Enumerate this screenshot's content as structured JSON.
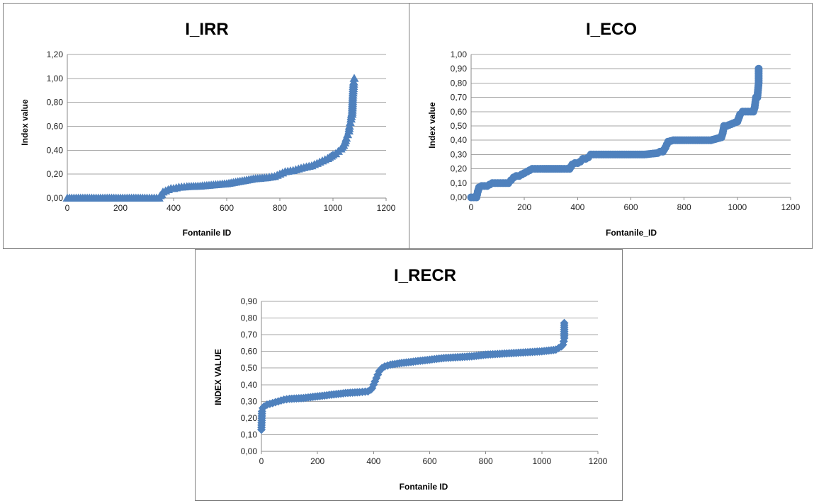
{
  "chart_data": [
    {
      "id": "irr",
      "type": "scatter",
      "title": "I_IRR",
      "xlabel": "Fontanile ID",
      "ylabel": "Index value",
      "xlim": [
        0,
        1200
      ],
      "ylim": [
        0,
        1.2
      ],
      "xticks": [
        "0",
        "200",
        "400",
        "600",
        "800",
        "1000",
        "1200"
      ],
      "yticks": [
        "0,00",
        "0,20",
        "0,40",
        "0,60",
        "0,80",
        "1,00",
        "1,20"
      ],
      "marker": "triangle",
      "color": "#4f81bd",
      "grid": true,
      "legend": "none",
      "series": [
        {
          "x": [
            0,
            50,
            100,
            150,
            200,
            250,
            300,
            345,
            350,
            355,
            360,
            370,
            380,
            390,
            400,
            420,
            450,
            500,
            550,
            600,
            650,
            700,
            750,
            780,
            800,
            820,
            850,
            880,
            900,
            920,
            940,
            960,
            980,
            1000,
            1010,
            1020,
            1030,
            1040,
            1045,
            1050,
            1055,
            1060,
            1062,
            1065,
            1068,
            1070,
            1072,
            1075,
            1078,
            1080
          ],
          "y": [
            0,
            0,
            0,
            0,
            0,
            0,
            0,
            0,
            0.02,
            0.03,
            0.05,
            0.06,
            0.07,
            0.08,
            0.08,
            0.09,
            0.095,
            0.1,
            0.11,
            0.12,
            0.14,
            0.16,
            0.17,
            0.18,
            0.2,
            0.22,
            0.23,
            0.25,
            0.26,
            0.27,
            0.29,
            0.31,
            0.33,
            0.36,
            0.37,
            0.39,
            0.41,
            0.44,
            0.46,
            0.5,
            0.53,
            0.56,
            0.6,
            0.63,
            0.66,
            0.7,
            0.7,
            0.86,
            0.97,
            1.0
          ]
        }
      ]
    },
    {
      "id": "eco",
      "type": "scatter",
      "title": "I_ECO",
      "xlabel": "Fontanile_ID",
      "ylabel": "Index value",
      "xlim": [
        0,
        1200
      ],
      "ylim": [
        0,
        1.0
      ],
      "xticks": [
        "0",
        "200",
        "400",
        "600",
        "800",
        "1000",
        "1200"
      ],
      "yticks": [
        "0,00",
        "0,10",
        "0,20",
        "0,30",
        "0,40",
        "0,50",
        "0,60",
        "0,70",
        "0,80",
        "0,90",
        "1,00"
      ],
      "marker": "circle",
      "color": "#4f81bd",
      "grid": true,
      "legend": "none",
      "series": [
        {
          "x": [
            0,
            10,
            20,
            25,
            30,
            40,
            60,
            80,
            100,
            120,
            140,
            150,
            160,
            170,
            180,
            200,
            210,
            230,
            260,
            300,
            340,
            370,
            380,
            390,
            400,
            410,
            420,
            430,
            440,
            450,
            480,
            550,
            600,
            650,
            700,
            710,
            720,
            730,
            740,
            760,
            800,
            850,
            900,
            940,
            945,
            950,
            960,
            1000,
            1010,
            1020,
            1040,
            1060,
            1065,
            1070,
            1075,
            1080,
            1080
          ],
          "y": [
            0,
            0,
            0,
            0.04,
            0.07,
            0.08,
            0.08,
            0.1,
            0.1,
            0.1,
            0.1,
            0.12,
            0.14,
            0.15,
            0.15,
            0.17,
            0.18,
            0.2,
            0.2,
            0.2,
            0.2,
            0.2,
            0.23,
            0.24,
            0.24,
            0.25,
            0.27,
            0.27,
            0.28,
            0.3,
            0.3,
            0.3,
            0.3,
            0.3,
            0.31,
            0.32,
            0.32,
            0.35,
            0.39,
            0.4,
            0.4,
            0.4,
            0.4,
            0.42,
            0.45,
            0.5,
            0.5,
            0.53,
            0.58,
            0.6,
            0.6,
            0.6,
            0.63,
            0.7,
            0.7,
            0.8,
            0.9
          ]
        }
      ]
    },
    {
      "id": "recr",
      "type": "scatter",
      "title": "I_RECR",
      "xlabel": "Fontanile ID",
      "ylabel": "INDEX VALUE",
      "xlim": [
        0,
        1200
      ],
      "ylim": [
        0,
        0.9
      ],
      "xticks": [
        "0",
        "200",
        "400",
        "600",
        "800",
        "1000",
        "1200"
      ],
      "yticks": [
        "0,00",
        "0,10",
        "0,20",
        "0,30",
        "0,40",
        "0,50",
        "0,60",
        "0,70",
        "0,80",
        "0,90"
      ],
      "marker": "diamond",
      "color": "#4f81bd",
      "grid": true,
      "legend": "none",
      "series": [
        {
          "x": [
            0,
            2,
            5,
            10,
            20,
            40,
            60,
            80,
            100,
            150,
            200,
            250,
            300,
            350,
            380,
            390,
            395,
            400,
            405,
            410,
            415,
            420,
            425,
            430,
            440,
            460,
            500,
            550,
            600,
            650,
            700,
            750,
            800,
            850,
            900,
            950,
            1000,
            1050,
            1060,
            1070,
            1075,
            1078,
            1080,
            1080
          ],
          "y": [
            0.13,
            0.24,
            0.26,
            0.27,
            0.28,
            0.29,
            0.3,
            0.31,
            0.315,
            0.32,
            0.33,
            0.34,
            0.35,
            0.355,
            0.36,
            0.37,
            0.38,
            0.4,
            0.42,
            0.44,
            0.46,
            0.48,
            0.49,
            0.5,
            0.51,
            0.52,
            0.53,
            0.54,
            0.55,
            0.56,
            0.565,
            0.57,
            0.58,
            0.585,
            0.59,
            0.595,
            0.6,
            0.61,
            0.62,
            0.63,
            0.64,
            0.66,
            0.68,
            0.77
          ]
        }
      ]
    }
  ]
}
